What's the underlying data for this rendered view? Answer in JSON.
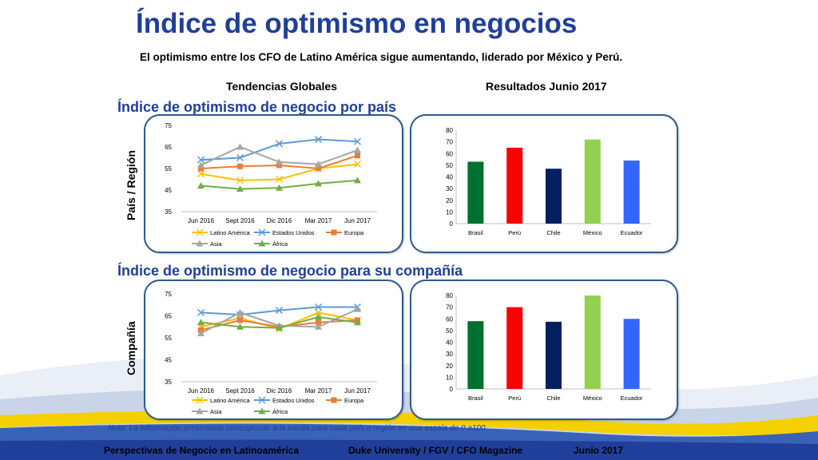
{
  "title": "Índice de optimismo en negocios",
  "subtitle": "El optimismo entre los CFO de Latino América sigue aumentando, liderado por México y Perú.",
  "column_headers": {
    "left": "Tendencias Globales",
    "right": "Resultados Junio 2017"
  },
  "sections": {
    "country": {
      "heading": "Índice de optimismo de negocio por país",
      "side_label": "País / Región"
    },
    "company": {
      "heading": "Índice de optimismo de negocio para su compañía",
      "side_label": "Compañía"
    }
  },
  "note": "Nota: La información presentada corresponde a la media para cada país o región en una escala de 0 a100",
  "footer": {
    "left": "Perspectivas de Negocio en Latinoamérica",
    "center": "Duke University / FGV / CFO Magazine",
    "right": "Junio 2017"
  },
  "colors": {
    "title_blue": "#1f3f9a",
    "panel_border": "#2e5a8f",
    "latino_america": "#ffc000",
    "estados_unidos": "#5b9bd5",
    "europa": "#ed7d31",
    "asia": "#a5a5a5",
    "africa": "#70ad47"
  },
  "chart_data": [
    {
      "type": "line",
      "categories": [
        "Jun 2016",
        "Sept 2016",
        "Dic 2016",
        "Mar 2017",
        "Jun 2017"
      ],
      "ylim": [
        35,
        75
      ],
      "yticks": [
        35,
        45,
        55,
        65,
        75
      ],
      "series": [
        {
          "name": "Latino América",
          "color": "#ffc000",
          "marker": "x",
          "values": [
            52.5,
            49.5,
            50,
            55,
            57
          ]
        },
        {
          "name": "Estados Unidos",
          "color": "#5b9bd5",
          "marker": "x",
          "values": [
            59,
            60,
            66.5,
            68.5,
            67.5
          ]
        },
        {
          "name": "Europa",
          "color": "#ed7d31",
          "marker": "square",
          "values": [
            55,
            56,
            56.5,
            55,
            61
          ]
        },
        {
          "name": "Asia",
          "color": "#a5a5a5",
          "marker": "triangle",
          "values": [
            56.5,
            65,
            58,
            57,
            63.5
          ]
        },
        {
          "name": "África",
          "color": "#70ad47",
          "marker": "triangle",
          "values": [
            47,
            45.5,
            46,
            48,
            49.5
          ]
        }
      ],
      "legend": "bottom"
    },
    {
      "type": "bar",
      "categories": [
        "Brasil",
        "Perú",
        "Chile",
        "México",
        "Ecuador"
      ],
      "values": [
        53,
        65,
        47,
        72,
        54
      ],
      "colors": [
        "#00702e",
        "#ff0000",
        "#002060",
        "#92d050",
        "#3366ff"
      ],
      "ylim": [
        0,
        80
      ],
      "yticks": [
        0,
        10,
        20,
        30,
        40,
        50,
        60,
        70,
        80
      ]
    },
    {
      "type": "line",
      "categories": [
        "Jun 2016",
        "Sept 2016",
        "Dic 2016",
        "Mar 2017",
        "Jun 2017"
      ],
      "ylim": [
        35,
        75
      ],
      "yticks": [
        35,
        45,
        55,
        65,
        75
      ],
      "series": [
        {
          "name": "Latino América",
          "color": "#ffc000",
          "marker": "x",
          "values": [
            60,
            64,
            59,
            66.5,
            63
          ]
        },
        {
          "name": "Estados Unidos",
          "color": "#5b9bd5",
          "marker": "x",
          "values": [
            66.5,
            65.5,
            67.5,
            69,
            69
          ]
        },
        {
          "name": "Europa",
          "color": "#ed7d31",
          "marker": "square",
          "values": [
            58.5,
            63,
            60,
            62,
            63
          ]
        },
        {
          "name": "Asia",
          "color": "#a5a5a5",
          "marker": "triangle",
          "values": [
            57,
            66.5,
            60.5,
            60,
            68
          ]
        },
        {
          "name": "África",
          "color": "#70ad47",
          "marker": "triangle",
          "values": [
            62,
            60,
            59.5,
            64.5,
            62
          ]
        }
      ],
      "legend": "bottom"
    },
    {
      "type": "bar",
      "categories": [
        "Brasil",
        "Perú",
        "Chile",
        "México",
        "Ecuador"
      ],
      "values": [
        58,
        70,
        57.5,
        80,
        60
      ],
      "colors": [
        "#00702e",
        "#ff0000",
        "#002060",
        "#92d050",
        "#3366ff"
      ],
      "ylim": [
        0,
        80
      ],
      "yticks": [
        0,
        10,
        20,
        30,
        40,
        50,
        60,
        70,
        80
      ]
    }
  ]
}
